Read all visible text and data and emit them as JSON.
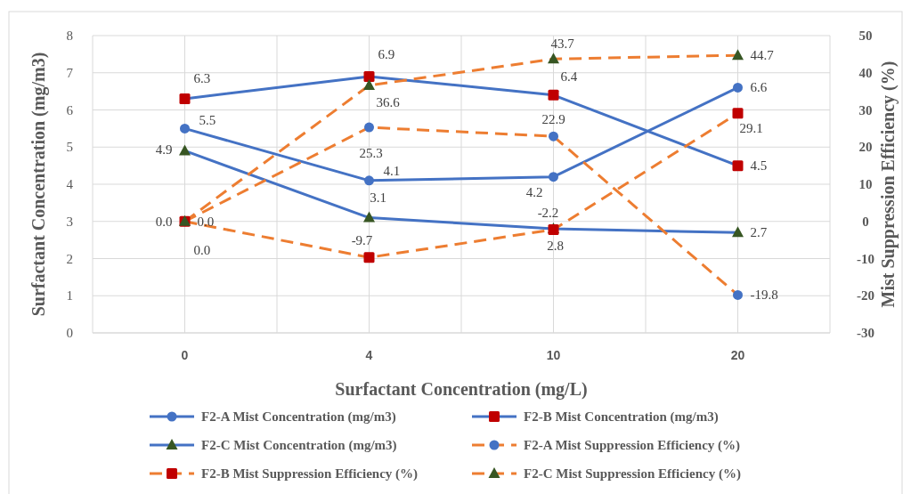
{
  "chart_data": {
    "type": "line",
    "xlabel": "Surfactant Concentration (mg/L)",
    "ylabel": "Surfactant Concentration (mg/m3)",
    "y2label": "Mist Suppression Efficiency (%)",
    "categories": [
      "0",
      "4",
      "10",
      "20"
    ],
    "ylim": [
      0,
      8
    ],
    "yticks": [
      0,
      1,
      2,
      3,
      4,
      5,
      6,
      7,
      8
    ],
    "y2lim": [
      -30,
      50
    ],
    "y2ticks": [
      -30,
      -20,
      -10,
      0,
      10,
      20,
      30,
      40,
      50
    ],
    "grid": true,
    "legend": "bottom",
    "series": [
      {
        "name": "F2-A Mist Concentration (mg/m3)",
        "color": "#4472c4",
        "marker": "circle",
        "colors": [
          "#4472c4",
          "#4472c4",
          "#4472c4",
          "#4472c4"
        ],
        "line_style": "solid",
        "values": [
          5.5,
          4.1,
          4.2,
          6.6
        ],
        "value_labels": [
          "5.5",
          "4.1",
          "4.2",
          "6.6"
        ]
      },
      {
        "name": "F2-B Mist Concentration (mg/m3)",
        "color": "#4472c4",
        "marker": "square",
        "colors": [
          "#c00000",
          "#c00000",
          "#c00000",
          "#c00000"
        ],
        "line_style": "solid",
        "values": [
          6.3,
          6.9,
          6.4,
          4.5
        ],
        "value_labels": [
          "6.3",
          "6.9",
          "6.4",
          "4.5"
        ]
      },
      {
        "name": "F2-C Mist Concentration (mg/m3)",
        "color": "#4472c4",
        "marker": "triangle",
        "colors": [
          "#375623",
          "#375623",
          "#375623",
          "#375623"
        ],
        "line_style": "solid",
        "values": [
          4.9,
          3.1,
          2.8,
          2.7
        ],
        "value_labels": [
          "4.9",
          "3.1",
          "2.8",
          "2.7"
        ]
      },
      {
        "name": "F2-A Mist Suppression Efficiency (%)",
        "color": "#ed7d31",
        "marker": "circle",
        "colors": [
          "#4472c4",
          "#4472c4",
          "#4472c4",
          "#4472c4"
        ],
        "line_style": "dashed",
        "axis": "y2",
        "values": [
          0.0,
          25.3,
          22.9,
          -19.8
        ],
        "value_labels": [
          "0.0",
          "25.3",
          "22.9",
          "-19.8"
        ]
      },
      {
        "name": "F2-B Mist Suppression Efficiency (%)",
        "color": "#ed7d31",
        "marker": "square",
        "colors": [
          "#c00000",
          "#c00000",
          "#c00000",
          "#c00000"
        ],
        "line_style": "dashed",
        "axis": "y2",
        "values": [
          0.0,
          -9.7,
          -2.2,
          29.1
        ],
        "value_labels": [
          "0.0",
          "-9.7",
          "-2.2",
          "29.1"
        ]
      },
      {
        "name": "F2-C Mist Suppression Efficiency (%)",
        "color": "#ed7d31",
        "marker": "triangle",
        "colors": [
          "#375623",
          "#375623",
          "#375623",
          "#375623"
        ],
        "line_style": "dashed",
        "axis": "y2",
        "values": [
          0.0,
          36.6,
          43.7,
          44.7
        ],
        "value_labels": [
          "0.0",
          "36.6",
          "43.7",
          "44.7"
        ]
      }
    ]
  }
}
